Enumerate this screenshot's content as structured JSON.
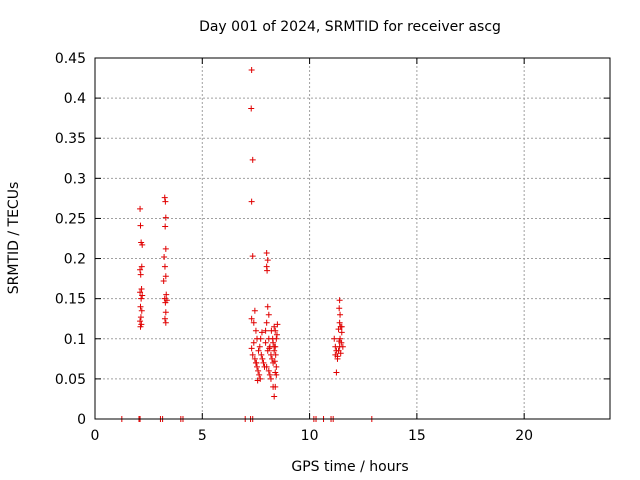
{
  "chart_data": {
    "type": "scatter",
    "title": "Day 001 of 2024, SRMTID for receiver ascg",
    "xlabel": "GPS time / hours",
    "ylabel": "SRMTID / TECUs",
    "xlim": [
      0,
      24
    ],
    "ylim": [
      0,
      0.45
    ],
    "grid": true,
    "marker": "+",
    "xticks": [
      0,
      5,
      10,
      15,
      20
    ],
    "xtick_labels": [
      "0",
      "5",
      "10",
      "15",
      "20"
    ],
    "yticks": [
      0,
      0.05,
      0.1,
      0.15,
      0.2,
      0.25,
      0.3,
      0.35,
      0.4,
      0.45
    ],
    "ytick_labels": [
      "0",
      "0.05",
      "0.1",
      "0.15",
      "0.2",
      "0.25",
      "0.3",
      "0.35",
      "0.4",
      "0.45"
    ],
    "series": [
      {
        "name": "SRMTID",
        "color": "#e00000",
        "points": [
          [
            1.25,
            0
          ],
          [
            2.05,
            0
          ],
          [
            2.1,
            0
          ],
          [
            3.05,
            0
          ],
          [
            3.15,
            0
          ],
          [
            4.0,
            0
          ],
          [
            4.1,
            0
          ],
          [
            7.0,
            0
          ],
          [
            7.25,
            0
          ],
          [
            7.35,
            0
          ],
          [
            10.2,
            0
          ],
          [
            10.3,
            0
          ],
          [
            10.65,
            0
          ],
          [
            11.0,
            0
          ],
          [
            11.1,
            0
          ],
          [
            12.9,
            0
          ],
          [
            2.1,
            0.262
          ],
          [
            2.12,
            0.241
          ],
          [
            2.15,
            0.22
          ],
          [
            2.2,
            0.217
          ],
          [
            2.18,
            0.19
          ],
          [
            2.1,
            0.186
          ],
          [
            2.13,
            0.18
          ],
          [
            2.17,
            0.162
          ],
          [
            2.1,
            0.158
          ],
          [
            2.2,
            0.154
          ],
          [
            2.15,
            0.15
          ],
          [
            2.12,
            0.14
          ],
          [
            2.18,
            0.135
          ],
          [
            2.14,
            0.127
          ],
          [
            2.1,
            0.122
          ],
          [
            2.16,
            0.118
          ],
          [
            2.12,
            0.115
          ],
          [
            3.25,
            0.276
          ],
          [
            3.28,
            0.271
          ],
          [
            3.3,
            0.251
          ],
          [
            3.27,
            0.24
          ],
          [
            3.3,
            0.212
          ],
          [
            3.22,
            0.202
          ],
          [
            3.26,
            0.19
          ],
          [
            3.3,
            0.178
          ],
          [
            3.2,
            0.172
          ],
          [
            3.32,
            0.155
          ],
          [
            3.25,
            0.15
          ],
          [
            3.35,
            0.148
          ],
          [
            3.28,
            0.145
          ],
          [
            3.3,
            0.133
          ],
          [
            3.26,
            0.125
          ],
          [
            3.3,
            0.12
          ],
          [
            7.3,
            0.435
          ],
          [
            7.28,
            0.387
          ],
          [
            7.35,
            0.323
          ],
          [
            7.3,
            0.271
          ],
          [
            7.35,
            0.203
          ],
          [
            7.3,
            0.125
          ],
          [
            7.45,
            0.135
          ],
          [
            7.4,
            0.12
          ],
          [
            7.5,
            0.11
          ],
          [
            7.55,
            0.1
          ],
          [
            7.4,
            0.095
          ],
          [
            7.3,
            0.088
          ],
          [
            7.35,
            0.08
          ],
          [
            7.45,
            0.075
          ],
          [
            7.5,
            0.07
          ],
          [
            7.55,
            0.065
          ],
          [
            7.6,
            0.06
          ],
          [
            7.65,
            0.055
          ],
          [
            7.7,
            0.05
          ],
          [
            7.58,
            0.048
          ],
          [
            7.52,
            0.07
          ],
          [
            7.62,
            0.085
          ],
          [
            7.68,
            0.09
          ],
          [
            7.75,
            0.08
          ],
          [
            7.8,
            0.075
          ],
          [
            7.85,
            0.07
          ],
          [
            7.9,
            0.065
          ],
          [
            7.72,
            0.1
          ],
          [
            7.78,
            0.108
          ],
          [
            8.0,
            0.207
          ],
          [
            8.05,
            0.198
          ],
          [
            8.0,
            0.19
          ],
          [
            8.02,
            0.185
          ],
          [
            8.05,
            0.14
          ],
          [
            8.1,
            0.13
          ],
          [
            8.0,
            0.12
          ],
          [
            7.95,
            0.11
          ],
          [
            8.1,
            0.1
          ],
          [
            8.15,
            0.09
          ],
          [
            8.05,
            0.085
          ],
          [
            8.2,
            0.08
          ],
          [
            8.25,
            0.075
          ],
          [
            8.3,
            0.07
          ],
          [
            8.0,
            0.065
          ],
          [
            8.1,
            0.06
          ],
          [
            8.15,
            0.055
          ],
          [
            8.2,
            0.05
          ],
          [
            7.95,
            0.095
          ],
          [
            8.12,
            0.088
          ],
          [
            8.22,
            0.11
          ],
          [
            8.28,
            0.1
          ],
          [
            8.3,
            0.095
          ],
          [
            8.35,
            0.09
          ],
          [
            8.35,
            0.115
          ],
          [
            8.4,
            0.11
          ],
          [
            8.45,
            0.1
          ],
          [
            8.4,
            0.09
          ],
          [
            8.35,
            0.085
          ],
          [
            8.42,
            0.08
          ],
          [
            8.38,
            0.072
          ],
          [
            8.45,
            0.065
          ],
          [
            8.4,
            0.058
          ],
          [
            8.45,
            0.055
          ],
          [
            8.3,
            0.04
          ],
          [
            8.4,
            0.04
          ],
          [
            8.35,
            0.028
          ],
          [
            8.5,
            0.118
          ],
          [
            8.48,
            0.105
          ],
          [
            11.15,
            0.1
          ],
          [
            11.2,
            0.09
          ],
          [
            11.25,
            0.085
          ],
          [
            11.2,
            0.08
          ],
          [
            11.3,
            0.075
          ],
          [
            11.4,
            0.148
          ],
          [
            11.38,
            0.138
          ],
          [
            11.42,
            0.13
          ],
          [
            11.4,
            0.12
          ],
          [
            11.45,
            0.115
          ],
          [
            11.35,
            0.112
          ],
          [
            11.5,
            0.108
          ],
          [
            11.42,
            0.1
          ],
          [
            11.48,
            0.095
          ],
          [
            11.4,
            0.09
          ],
          [
            11.35,
            0.085
          ],
          [
            11.45,
            0.082
          ],
          [
            11.3,
            0.078
          ],
          [
            11.25,
            0.058
          ],
          [
            11.55,
            0.09
          ],
          [
            11.5,
            0.115
          ],
          [
            11.38,
            0.097
          ]
        ]
      }
    ]
  }
}
